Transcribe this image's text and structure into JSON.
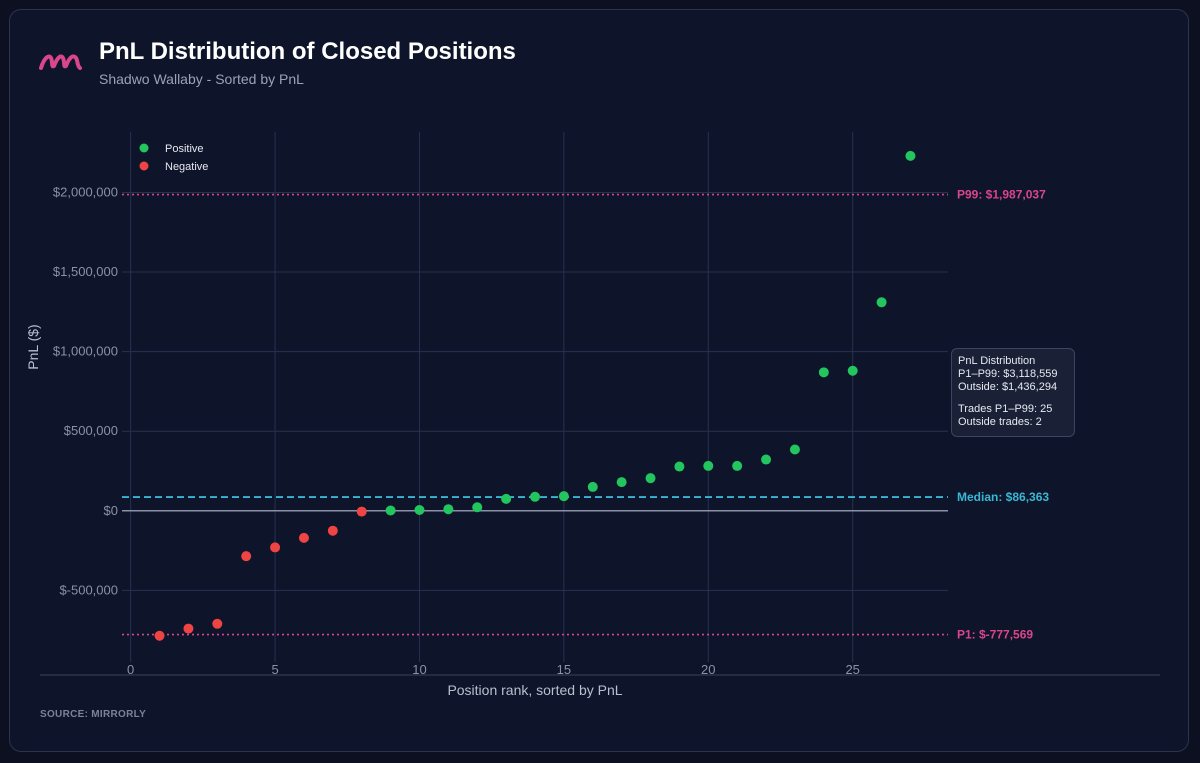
{
  "header": {
    "title": "PnL Distribution of Closed Positions",
    "subtitle": "Shadwo Wallaby - Sorted by PnL",
    "logo_icon": "mirrorly-logo-icon"
  },
  "footer": {
    "source": "SOURCE: MIRRORLY"
  },
  "tooltip": {
    "heading": "PnL Distribution",
    "p1_p99": "P1–P99: $3,118,559",
    "outside": "Outside: $1,436,294",
    "trades": "Trades P1–P99: 25",
    "outside_trades": "Outside trades: 2"
  },
  "colors": {
    "positive": "#22c55e",
    "negative": "#ef4444",
    "median": "#3ab7d4",
    "percentile": "#d9468c",
    "zero_line": "#8a91a6",
    "background": "#0e1429"
  },
  "chart_data": {
    "type": "scatter",
    "title": "PnL Distribution of Closed Positions",
    "subtitle": "Shadwo Wallaby - Sorted by PnL",
    "xlabel": "Position rank, sorted by PnL",
    "ylabel": "PnL ($)",
    "xlim": [
      -0.3,
      28.3
    ],
    "ylim": [
      -950000,
      2380000
    ],
    "grid": true,
    "legend_position": "top-left",
    "x_ticks": [
      0,
      5,
      10,
      15,
      20,
      25
    ],
    "x_tick_labels": [
      "0",
      "5",
      "10",
      "15",
      "20",
      "25"
    ],
    "y_ticks": [
      -500000,
      0,
      500000,
      1000000,
      1500000,
      2000000
    ],
    "y_tick_labels": [
      "$-500,000",
      "$0",
      "$500,000",
      "$1,000,000",
      "$1,500,000",
      "$2,000,000"
    ],
    "series": [
      {
        "name": "Positive",
        "color": "#22c55e",
        "x": [
          9,
          10,
          11,
          12,
          13,
          14,
          15,
          16,
          17,
          18,
          19,
          20,
          21,
          22,
          23,
          24,
          25,
          26,
          27
        ],
        "y": [
          2000,
          5000,
          10000,
          22000,
          75000,
          88000,
          92000,
          150000,
          180000,
          205000,
          278000,
          282000,
          282000,
          322000,
          385000,
          870000,
          880000,
          1310000,
          2230000
        ]
      },
      {
        "name": "Negative",
        "color": "#ef4444",
        "x": [
          1,
          2,
          3,
          4,
          5,
          6,
          7,
          8
        ],
        "y": [
          -785000,
          -740000,
          -710000,
          -285000,
          -230000,
          -170000,
          -125000,
          -5000
        ]
      }
    ],
    "reference_lines": [
      {
        "label": "P99: $1,987,037",
        "value": 1987037,
        "style": "dotted",
        "color": "#d9468c"
      },
      {
        "label": "Median: $86,363",
        "value": 86363,
        "style": "dashed",
        "color": "#3ab7d4"
      },
      {
        "label": "P1: $-777,569",
        "value": -777569,
        "style": "dotted",
        "color": "#d9468c"
      }
    ]
  }
}
